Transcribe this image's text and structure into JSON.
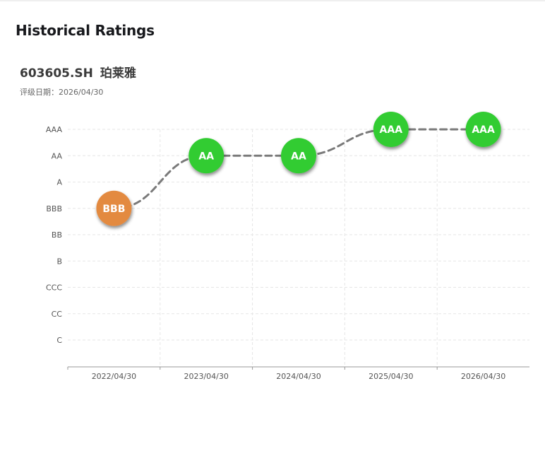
{
  "page": {
    "title": "Historical Ratings"
  },
  "stock": {
    "code": "603605.SH",
    "name": "珀莱雅"
  },
  "rating_date": {
    "label": "评级日期",
    "separator": "：",
    "value": "2026/04/30"
  },
  "colors": {
    "good_rating": "#33cc33",
    "mid_rating": "#e38a41",
    "line": "#7a7a7a",
    "grid": "#e6e6e6",
    "axis": "#999999",
    "tick_text": "#555555"
  },
  "chart_data": {
    "type": "line",
    "title": "",
    "xlabel": "",
    "ylabel": "",
    "y_categories": [
      "C",
      "CC",
      "CCC",
      "B",
      "BB",
      "BBB",
      "A",
      "AA",
      "AAA"
    ],
    "x": [
      "2022/04/30",
      "2023/04/30",
      "2024/04/30",
      "2025/04/30",
      "2026/04/30"
    ],
    "series": [
      {
        "values": [
          "BBB",
          "AA",
          "AA",
          "AAA",
          "AAA"
        ],
        "marker_colors": [
          "#e38a41",
          "#33cc33",
          "#33cc33",
          "#33cc33",
          "#33cc33"
        ]
      }
    ],
    "line_style": "dashed-smooth",
    "grid": true,
    "grid_style": "dashed",
    "legend": "none"
  }
}
